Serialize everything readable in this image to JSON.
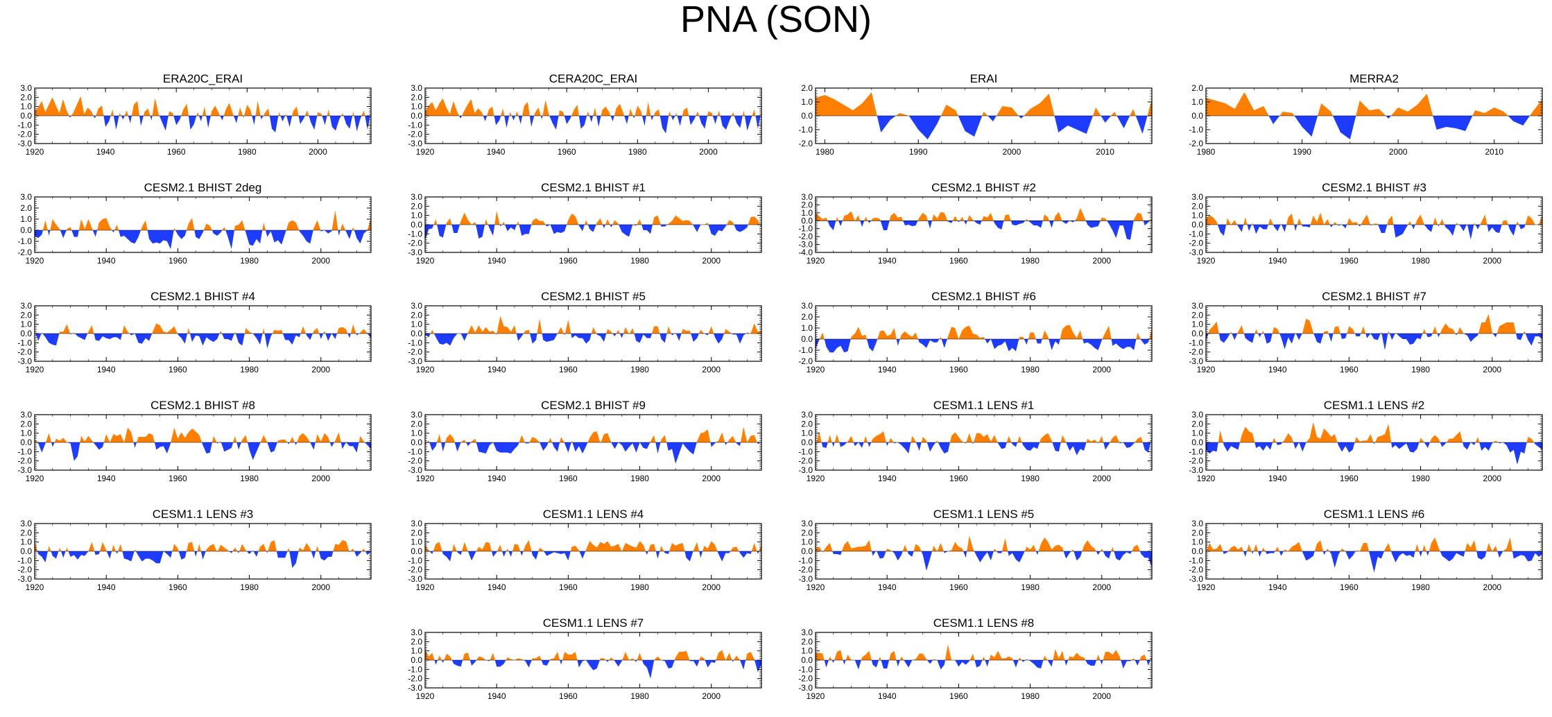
{
  "title": "PNA (SON)",
  "colors": {
    "positive": "#ff8000",
    "negative": "#1e3cff",
    "axis": "#000000"
  },
  "chart_data": [
    {
      "type": "area",
      "title": "ERA20C_ERAI",
      "x_start": 1920,
      "x_end": 2015,
      "xticks": [
        1920,
        1940,
        1960,
        1980,
        2000
      ],
      "yticks": [
        "3.0",
        "2.0",
        "1.0",
        "0.0",
        "-1.0",
        "-2.0",
        "-3.0"
      ],
      "ylim": [
        -3,
        3
      ],
      "seed": 11,
      "values": [
        0.5,
        0.9,
        1.6,
        0.4,
        1.2,
        2.0,
        1.1,
        0.3,
        1.8,
        0.6,
        -0.2,
        0.4,
        1.3,
        2.1,
        0.2,
        0.9,
        0.5,
        -0.3,
        0.8,
        1.1,
        -1.2,
        -0.6,
        0.7,
        -1.5,
        0.3,
        -0.4,
        0.6,
        -0.8,
        1.2,
        1.6,
        -1.1,
        0.4,
        0.8,
        -0.5,
        1.9,
        0.2,
        -0.7,
        -1.6,
        0.5,
        0.3,
        -1.0,
        -0.4,
        0.7,
        1.3,
        -1.5,
        -0.9,
        0.4,
        -0.6,
        1.0,
        -1.3,
        0.5,
        1.1,
        0.3,
        -0.5,
        0.7,
        1.4,
        0.2,
        -0.8,
        0.9,
        -0.2,
        1.2,
        0.6,
        -1.0,
        1.6,
        -0.4,
        0.3,
        0.8,
        -1.4,
        -1.8,
        0.4,
        -0.6,
        0.2,
        -1.2,
        0.5,
        1.0,
        -0.9,
        -0.3,
        0.6,
        -0.7,
        -1.5,
        0.4,
        0.2,
        -1.0,
        0.7,
        -1.2,
        -1.6,
        -0.4,
        0.3,
        -0.9,
        -1.4,
        0.5,
        -1.7,
        -0.3,
        0.6,
        -1.5,
        0.4
      ]
    },
    {
      "type": "area",
      "title": "CERA20C_ERAI",
      "x_start": 1920,
      "x_end": 2015,
      "xticks": [
        1920,
        1940,
        1960,
        1980,
        2000
      ],
      "yticks": [
        "3.0",
        "2.0",
        "1.0",
        "0.0",
        "-1.0",
        "-2.0",
        "-3.0"
      ],
      "ylim": [
        -3,
        3
      ],
      "seed": 12,
      "values": [
        0.4,
        1.1,
        1.5,
        0.6,
        1.3,
        1.9,
        0.9,
        0.2,
        1.6,
        0.5,
        -0.3,
        0.5,
        1.2,
        1.8,
        0.3,
        0.8,
        0.4,
        -0.6,
        0.7,
        1.0,
        -1.0,
        -0.5,
        0.8,
        -1.3,
        0.4,
        -0.5,
        0.5,
        -0.9,
        1.1,
        1.5,
        -1.2,
        0.3,
        0.9,
        -0.4,
        1.7,
        0.1,
        -0.8,
        -1.5,
        0.6,
        0.4,
        -0.9,
        -0.3,
        0.6,
        1.2,
        -1.4,
        -1.0,
        0.5,
        -0.7,
        0.9,
        -1.2,
        0.6,
        1.0,
        0.4,
        -0.6,
        0.8,
        1.3,
        0.3,
        -0.9,
        0.8,
        -0.3,
        1.1,
        0.5,
        -1.1,
        1.5,
        -0.5,
        0.4,
        0.7,
        -1.3,
        -1.9,
        0.5,
        -0.5,
        0.3,
        -1.1,
        0.6,
        0.9,
        -1.0,
        -0.4,
        0.5,
        -0.8,
        -1.4,
        0.5,
        0.3,
        -0.9,
        0.6,
        -1.1,
        -1.5,
        -0.5,
        0.4,
        -0.8,
        -1.3,
        0.6,
        -1.6,
        -0.4,
        0.7,
        -1.4,
        0.5
      ]
    },
    {
      "type": "area",
      "title": "ERAI",
      "x_start": 1979,
      "x_end": 2015,
      "xticks": [
        1980,
        1990,
        2000,
        2010
      ],
      "yticks": [
        "2.0",
        "1.0",
        "0.0",
        "-1.0",
        "-2.0"
      ],
      "ylim": [
        -2,
        2
      ],
      "seed": 13,
      "values": [
        1.3,
        1.5,
        1.2,
        0.8,
        0.4,
        0.9,
        1.7,
        -1.2,
        -0.3,
        0.2,
        0.0,
        -1.0,
        -1.7,
        -0.6,
        0.8,
        0.4,
        -1.1,
        -1.5,
        0.3,
        -0.4,
        0.7,
        0.6,
        -0.2,
        0.5,
        0.9,
        1.6,
        -1.2,
        -0.7,
        -1.0,
        -1.3,
        0.6,
        -0.5,
        0.3,
        -0.9,
        0.5,
        -1.3,
        1.2
      ]
    },
    {
      "type": "area",
      "title": "MERRA2",
      "x_start": 1980,
      "x_end": 2015,
      "xticks": [
        1980,
        1990,
        2000,
        2010
      ],
      "yticks": [
        "2.0",
        "1.0",
        "0.0",
        "-1.0",
        "-2.0"
      ],
      "ylim": [
        -2,
        2
      ],
      "seed": 14,
      "values": [
        1.3,
        1.1,
        0.9,
        0.5,
        1.7,
        0.4,
        0.7,
        -0.6,
        0.3,
        0.2,
        -0.8,
        -1.5,
        0.9,
        0.3,
        -1.2,
        -1.7,
        1.1,
        0.4,
        0.5,
        -0.2,
        0.6,
        0.3,
        0.8,
        1.6,
        -1.0,
        -0.8,
        -0.9,
        -1.1,
        0.4,
        0.2,
        0.6,
        0.3,
        -0.4,
        -0.7,
        0.3,
        1.2
      ]
    },
    {
      "type": "area",
      "title": "CESM2.1 BHIST 2deg",
      "x_start": 1920,
      "x_end": 2014,
      "xticks": [
        1920,
        1940,
        1960,
        1980,
        2000
      ],
      "yticks": [
        "3.0",
        "2.0",
        "1.0",
        "0.0",
        "-1.0",
        "-2.0"
      ],
      "ylim": [
        -2,
        3
      ],
      "seed": 21
    },
    {
      "type": "area",
      "title": "CESM2.1 BHIST #1",
      "x_start": 1920,
      "x_end": 2014,
      "xticks": [
        1920,
        1940,
        1960,
        1980,
        2000
      ],
      "yticks": [
        "3.0",
        "2.0",
        "1.0",
        "0.0",
        "-1.0",
        "-2.0",
        "-3.0"
      ],
      "ylim": [
        -3,
        3
      ],
      "seed": 22
    },
    {
      "type": "area",
      "title": "CESM2.1 BHIST #2",
      "x_start": 1920,
      "x_end": 2014,
      "xticks": [
        1920,
        1940,
        1960,
        1980,
        2000
      ],
      "yticks": [
        "3.0",
        "2.0",
        "1.0",
        "0.0",
        "-1.0",
        "-2.0",
        "-3.0",
        "-4.0"
      ],
      "ylim": [
        -4,
        3
      ],
      "seed": 23
    },
    {
      "type": "area",
      "title": "CESM2.1 BHIST #3",
      "x_start": 1920,
      "x_end": 2014,
      "xticks": [
        1920,
        1940,
        1960,
        1980,
        2000
      ],
      "yticks": [
        "3.0",
        "2.0",
        "1.0",
        "0.0",
        "-1.0",
        "-2.0",
        "-3.0"
      ],
      "ylim": [
        -3,
        3
      ],
      "seed": 24
    },
    {
      "type": "area",
      "title": "CESM2.1 BHIST #4",
      "x_start": 1920,
      "x_end": 2014,
      "xticks": [
        1920,
        1940,
        1960,
        1980,
        2000
      ],
      "yticks": [
        "3.0",
        "2.0",
        "1.0",
        "0.0",
        "-1.0",
        "-2.0",
        "-3.0"
      ],
      "ylim": [
        -3,
        3
      ],
      "seed": 25
    },
    {
      "type": "area",
      "title": "CESM2.1 BHIST #5",
      "x_start": 1920,
      "x_end": 2014,
      "xticks": [
        1920,
        1940,
        1960,
        1980,
        2000
      ],
      "yticks": [
        "3.0",
        "2.0",
        "1.0",
        "0.0",
        "-1.0",
        "-2.0",
        "-3.0"
      ],
      "ylim": [
        -3,
        3
      ],
      "seed": 26
    },
    {
      "type": "area",
      "title": "CESM2.1 BHIST #6",
      "x_start": 1920,
      "x_end": 2014,
      "xticks": [
        1920,
        1940,
        1960,
        1980,
        2000
      ],
      "yticks": [
        "3.0",
        "2.0",
        "1.0",
        "0.0",
        "-1.0",
        "-2.0"
      ],
      "ylim": [
        -2,
        3
      ],
      "seed": 27
    },
    {
      "type": "area",
      "title": "CESM2.1 BHIST #7",
      "x_start": 1920,
      "x_end": 2014,
      "xticks": [
        1920,
        1940,
        1960,
        1980,
        2000
      ],
      "yticks": [
        "3.0",
        "2.0",
        "1.0",
        "0.0",
        "-1.0",
        "-2.0",
        "-3.0"
      ],
      "ylim": [
        -3,
        3
      ],
      "seed": 28
    },
    {
      "type": "area",
      "title": "CESM2.1 BHIST #8",
      "x_start": 1920,
      "x_end": 2014,
      "xticks": [
        1920,
        1940,
        1960,
        1980,
        2000
      ],
      "yticks": [
        "3.0",
        "2.0",
        "1.0",
        "0.0",
        "-1.0",
        "-2.0",
        "-3.0"
      ],
      "ylim": [
        -3,
        3
      ],
      "seed": 31
    },
    {
      "type": "area",
      "title": "CESM2.1 BHIST #9",
      "x_start": 1920,
      "x_end": 2014,
      "xticks": [
        1920,
        1940,
        1960,
        1980,
        2000
      ],
      "yticks": [
        "3.0",
        "2.0",
        "1.0",
        "0.0",
        "-1.0",
        "-2.0",
        "-3.0"
      ],
      "ylim": [
        -3,
        3
      ],
      "seed": 32
    },
    {
      "type": "area",
      "title": "CESM1.1 LENS #1",
      "x_start": 1920,
      "x_end": 2014,
      "xticks": [
        1920,
        1940,
        1960,
        1980,
        2000
      ],
      "yticks": [
        "3.0",
        "2.0",
        "1.0",
        "0.0",
        "-1.0",
        "-2.0",
        "-3.0"
      ],
      "ylim": [
        -3,
        3
      ],
      "seed": 33
    },
    {
      "type": "area",
      "title": "CESM1.1 LENS #2",
      "x_start": 1920,
      "x_end": 2014,
      "xticks": [
        1920,
        1940,
        1960,
        1980,
        2000
      ],
      "yticks": [
        "3.0",
        "2.0",
        "1.0",
        "0.0",
        "-1.0",
        "-2.0",
        "-3.0"
      ],
      "ylim": [
        -3,
        3
      ],
      "seed": 34
    },
    {
      "type": "area",
      "title": "CESM1.1 LENS #3",
      "x_start": 1920,
      "x_end": 2014,
      "xticks": [
        1920,
        1940,
        1960,
        1980,
        2000
      ],
      "yticks": [
        "3.0",
        "2.0",
        "1.0",
        "0.0",
        "-1.0",
        "-2.0",
        "-3.0"
      ],
      "ylim": [
        -3,
        3
      ],
      "seed": 35
    },
    {
      "type": "area",
      "title": "CESM1.1 LENS #4",
      "x_start": 1920,
      "x_end": 2014,
      "xticks": [
        1920,
        1940,
        1960,
        1980,
        2000
      ],
      "yticks": [
        "3.0",
        "2.0",
        "1.0",
        "0.0",
        "-1.0",
        "-2.0",
        "-3.0"
      ],
      "ylim": [
        -3,
        3
      ],
      "seed": 36
    },
    {
      "type": "area",
      "title": "CESM1.1 LENS #5",
      "x_start": 1920,
      "x_end": 2014,
      "xticks": [
        1920,
        1940,
        1960,
        1980,
        2000
      ],
      "yticks": [
        "3.0",
        "2.0",
        "1.0",
        "0.0",
        "-1.0",
        "-2.0",
        "-3.0"
      ],
      "ylim": [
        -3,
        3
      ],
      "seed": 37
    },
    {
      "type": "area",
      "title": "CESM1.1 LENS #6",
      "x_start": 1920,
      "x_end": 2014,
      "xticks": [
        1920,
        1940,
        1960,
        1980,
        2000
      ],
      "yticks": [
        "3.0",
        "2.0",
        "1.0",
        "0.0",
        "-1.0",
        "-2.0",
        "-3.0"
      ],
      "ylim": [
        -3,
        3
      ],
      "seed": 38
    },
    {
      "type": "area",
      "title": "CESM1.1 LENS #7",
      "x_start": 1920,
      "x_end": 2014,
      "xticks": [
        1920,
        1940,
        1960,
        1980,
        2000
      ],
      "yticks": [
        "3.0",
        "2.0",
        "1.0",
        "0.0",
        "-1.0",
        "-2.0",
        "-3.0"
      ],
      "ylim": [
        -3,
        3
      ],
      "seed": 41
    },
    {
      "type": "area",
      "title": "CESM1.1 LENS #8",
      "x_start": 1920,
      "x_end": 2014,
      "xticks": [
        1920,
        1940,
        1960,
        1980,
        2000
      ],
      "yticks": [
        "3.0",
        "2.0",
        "1.0",
        "0.0",
        "-1.0",
        "-2.0",
        "-3.0"
      ],
      "ylim": [
        -3,
        3
      ],
      "seed": 42
    }
  ]
}
